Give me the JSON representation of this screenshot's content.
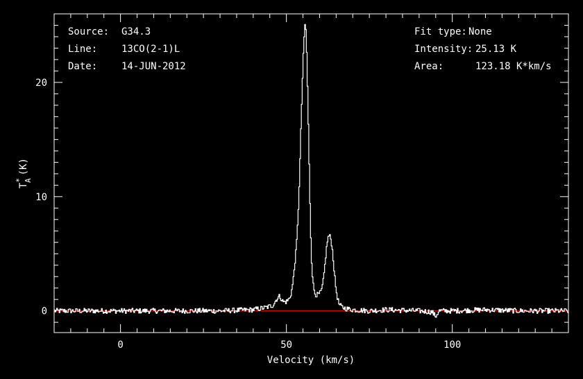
{
  "chart_data": {
    "type": "line",
    "title": "",
    "xlabel": "Velocity (km/s)",
    "ylabel": "T",
    "ylabel_sup": "*",
    "ylabel_sub": "A",
    "ylabel_unit": "(K)",
    "xlim": [
      -20.0,
      135.0
    ],
    "ylim": [
      -1.9,
      26.0
    ],
    "x_ticks": [
      0,
      50,
      100
    ],
    "y_ticks": [
      0,
      10,
      20
    ],
    "grid": false,
    "baseline": 0,
    "colors": {
      "background": "#000000",
      "spectrum": "#ffffff",
      "baseline": "#ff0000"
    },
    "info_left": [
      {
        "key": "Source:",
        "value": "G34.3"
      },
      {
        "key": "Line:",
        "value": "13CO(2-1)L"
      },
      {
        "key": "Date:",
        "value": "14-JUN-2012"
      }
    ],
    "info_right": [
      {
        "key": "Fit type:",
        "value": "None"
      },
      {
        "key": "Intensity:",
        "value": "25.13 K"
      },
      {
        "key": "Area:",
        "value": "123.18 K*km/s"
      }
    ],
    "series": [
      {
        "x": [
          -20,
          30,
          40,
          44,
          46,
          47,
          48,
          49,
          50,
          51,
          51.5,
          52,
          52.5,
          53,
          53.5,
          54,
          54.5,
          55,
          55.3,
          55.6,
          55.9,
          56.2,
          56.5,
          57,
          57.5,
          58,
          58.5,
          59,
          59.5,
          60,
          60.5,
          61,
          61.5,
          62,
          62.5,
          63,
          63.5,
          64,
          64.5,
          65,
          65.5,
          66,
          67,
          68,
          70,
          75,
          80,
          90,
          94,
          95,
          96,
          100,
          110,
          120,
          135
        ],
        "y": [
          0,
          0,
          0.1,
          0.3,
          0.5,
          1.0,
          1.3,
          0.8,
          0.8,
          1.1,
          1.6,
          2.5,
          4.0,
          5.5,
          8.0,
          12.0,
          17.0,
          21.5,
          23.5,
          25.13,
          24.5,
          22.0,
          18.0,
          11.0,
          5.0,
          2.5,
          1.6,
          1.4,
          1.4,
          1.5,
          1.7,
          2.3,
          3.6,
          5.2,
          6.4,
          6.6,
          6.2,
          5.0,
          3.2,
          1.8,
          1.0,
          0.5,
          0.3,
          0.2,
          0.1,
          0,
          0.1,
          0,
          -0.1,
          -0.5,
          0,
          0,
          0.1,
          0,
          0
        ]
      }
    ]
  }
}
